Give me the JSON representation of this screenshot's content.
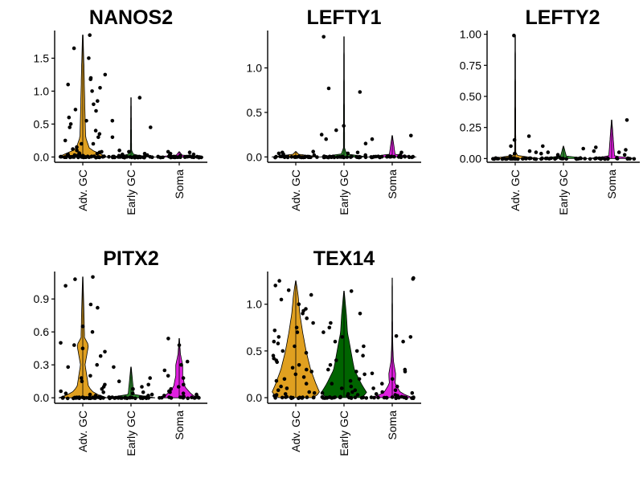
{
  "chart_data": [
    {
      "type": "violin",
      "title": "NANOS2",
      "categories": [
        "Adv. GC",
        "Early GC",
        "Soma"
      ],
      "colors": [
        "#E0A020",
        "#2E8B2E",
        "#E020E0"
      ],
      "ylim": [
        -0.08,
        1.92
      ],
      "yticks": [
        0,
        0.5,
        1,
        1.5
      ],
      "ytick_labels": [
        "0.0",
        "0.5",
        "1.0",
        "1.5"
      ],
      "groups": [
        {
          "max": 1.85,
          "shape": [
            [
              0,
              0.42
            ],
            [
              0.05,
              0.3
            ],
            [
              0.12,
              0.12
            ],
            [
              0.3,
              0.05
            ],
            [
              0.6,
              0.04
            ],
            [
              1.0,
              0.03
            ],
            [
              1.4,
              0.02
            ],
            [
              1.85,
              0.005
            ]
          ],
          "points": [
            1.85,
            1.65,
            1.5,
            1.25,
            1.2,
            1.18,
            1.1,
            1.05,
            1.0,
            0.85,
            0.8,
            0.72,
            0.7,
            0.6,
            0.55,
            0.5,
            0.45,
            0.4,
            0.35,
            0.3,
            0.25,
            0.2,
            0.2,
            0.15,
            0.12,
            0.1,
            0.08,
            0.07,
            0.06,
            0.05,
            0.05,
            0.04,
            0.03,
            0.03,
            0.02,
            0.02,
            0.01,
            0.01,
            0.01,
            0,
            0,
            0,
            0,
            0,
            0,
            0,
            0,
            0,
            0,
            0,
            0,
            0,
            0,
            0,
            0,
            0,
            0,
            0,
            0,
            0,
            0,
            0,
            0,
            0,
            0,
            0,
            0,
            0,
            0,
            0
          ]
        },
        {
          "max": 0.9,
          "shape": [
            [
              0,
              0.42
            ],
            [
              0.03,
              0.05
            ],
            [
              0.1,
              0.01
            ],
            [
              0.9,
              0.004
            ]
          ],
          "points": [
            0.9,
            0.55,
            0.45,
            0.3,
            0.1,
            0.08,
            0.05,
            0.04,
            0.03,
            0.02,
            0.01,
            0,
            0,
            0,
            0,
            0,
            0,
            0,
            0,
            0,
            0,
            0,
            0,
            0,
            0,
            0,
            0,
            0,
            0,
            0,
            0,
            0,
            0,
            0,
            0,
            0,
            0,
            0,
            0,
            0,
            0,
            0,
            0,
            0,
            0
          ]
        },
        {
          "max": 0.08,
          "shape": [
            [
              0,
              0.42
            ],
            [
              0.03,
              0.05
            ],
            [
              0.08,
              0.005
            ]
          ],
          "points": [
            0.08,
            0.07,
            0.05,
            0.04,
            0.03,
            0.02,
            0.01,
            0,
            0,
            0,
            0,
            0,
            0,
            0,
            0,
            0,
            0,
            0,
            0,
            0,
            0,
            0,
            0,
            0,
            0,
            0,
            0,
            0,
            0,
            0,
            0,
            0,
            0,
            0,
            0,
            0
          ]
        }
      ]
    },
    {
      "type": "violin",
      "title": "LEFTY1",
      "categories": [
        "Adv. GC",
        "Early GC",
        "Soma"
      ],
      "colors": [
        "#E0A020",
        "#2E8B2E",
        "#E020E0"
      ],
      "ylim": [
        -0.06,
        1.42
      ],
      "yticks": [
        0,
        0.5,
        1
      ],
      "ytick_labels": [
        "0.0",
        "0.5",
        "1.0"
      ],
      "groups": [
        {
          "max": 0.06,
          "shape": [
            [
              0,
              0.42
            ],
            [
              0.03,
              0.05
            ],
            [
              0.06,
              0.005
            ]
          ],
          "points": [
            0.06,
            0.05,
            0.04,
            0.03,
            0.02,
            0,
            0,
            0,
            0,
            0,
            0,
            0,
            0,
            0,
            0,
            0,
            0,
            0,
            0,
            0,
            0,
            0,
            0,
            0,
            0,
            0,
            0,
            0,
            0,
            0,
            0,
            0,
            0,
            0,
            0
          ]
        },
        {
          "max": 1.35,
          "shape": [
            [
              0,
              0.42
            ],
            [
              0.03,
              0.05
            ],
            [
              0.1,
              0.01
            ],
            [
              1.35,
              0.004
            ]
          ],
          "points": [
            1.35,
            0.77,
            0.73,
            0.35,
            0.3,
            0.25,
            0.2,
            0.15,
            0.05,
            0.04,
            0.02,
            0,
            0,
            0,
            0,
            0,
            0,
            0,
            0,
            0,
            0,
            0,
            0,
            0,
            0,
            0,
            0,
            0,
            0,
            0,
            0,
            0,
            0,
            0,
            0,
            0,
            0
          ]
        },
        {
          "max": 0.24,
          "shape": [
            [
              0,
              0.42
            ],
            [
              0.03,
              0.05
            ],
            [
              0.24,
              0.004
            ]
          ],
          "points": [
            0.24,
            0.2,
            0.05,
            0.02,
            0,
            0,
            0,
            0,
            0,
            0,
            0,
            0,
            0,
            0,
            0,
            0,
            0,
            0,
            0,
            0,
            0,
            0,
            0,
            0,
            0,
            0,
            0,
            0,
            0
          ]
        }
      ]
    },
    {
      "type": "violin",
      "title": "LEFTY2",
      "categories": [
        "Adv. GC",
        "Early GC",
        "Soma"
      ],
      "colors": [
        "#E0A020",
        "#2E8B2E",
        "#E020E0"
      ],
      "ylim": [
        -0.03,
        1.03
      ],
      "yticks": [
        0,
        0.25,
        0.5,
        0.75,
        1
      ],
      "ytick_labels": [
        "0.00",
        "0.25",
        "0.50",
        "0.75",
        "1.00"
      ],
      "groups": [
        {
          "max": 0.99,
          "shape": [
            [
              0,
              0.42
            ],
            [
              0.02,
              0.05
            ],
            [
              0.05,
              0.01
            ],
            [
              0.99,
              0.004
            ]
          ],
          "points": [
            0.99,
            0.18,
            0.15,
            0.1,
            0.06,
            0.05,
            0.04,
            0.02,
            0,
            0,
            0,
            0,
            0,
            0,
            0,
            0,
            0,
            0,
            0,
            0,
            0,
            0,
            0,
            0,
            0,
            0,
            0,
            0,
            0,
            0,
            0,
            0,
            0
          ]
        },
        {
          "max": 0.1,
          "shape": [
            [
              0,
              0.42
            ],
            [
              0.02,
              0.05
            ],
            [
              0.1,
              0.004
            ]
          ],
          "points": [
            0.1,
            0.08,
            0.05,
            0.04,
            0.03,
            0.02,
            0,
            0,
            0,
            0,
            0,
            0,
            0,
            0,
            0,
            0,
            0,
            0,
            0,
            0,
            0,
            0,
            0,
            0,
            0,
            0,
            0,
            0
          ]
        },
        {
          "max": 0.31,
          "shape": [
            [
              0,
              0.42
            ],
            [
              0.02,
              0.05
            ],
            [
              0.31,
              0.004
            ]
          ],
          "points": [
            0.31,
            0.09,
            0.07,
            0.06,
            0.05,
            0.03,
            0,
            0,
            0,
            0,
            0,
            0,
            0,
            0,
            0,
            0,
            0,
            0,
            0,
            0,
            0,
            0,
            0
          ]
        }
      ]
    },
    {
      "type": "violin",
      "title": "PITX2",
      "categories": [
        "Adv. GC",
        "Early GC",
        "Soma"
      ],
      "colors": [
        "#E0A020",
        "#2E8B2E",
        "#E020E0"
      ],
      "ylim": [
        -0.05,
        1.15
      ],
      "yticks": [
        0,
        0.3,
        0.6,
        0.9
      ],
      "ytick_labels": [
        "0.0",
        "0.3",
        "0.6",
        "0.9"
      ],
      "groups": [
        {
          "max": 1.1,
          "shape": [
            [
              0,
              0.42
            ],
            [
              0.04,
              0.2
            ],
            [
              0.1,
              0.1
            ],
            [
              0.3,
              0.04
            ],
            [
              0.48,
              0.1
            ],
            [
              0.55,
              0.03
            ],
            [
              0.8,
              0.02
            ],
            [
              1.1,
              0.004
            ]
          ],
          "points": [
            1.1,
            1.08,
            1.02,
            0.85,
            0.82,
            0.65,
            0.6,
            0.5,
            0.48,
            0.45,
            0.42,
            0.38,
            0.3,
            0.28,
            0.2,
            0.18,
            0.15,
            0.12,
            0.1,
            0.08,
            0.06,
            0.05,
            0.04,
            0.03,
            0.02,
            0.01,
            0,
            0,
            0,
            0,
            0,
            0,
            0,
            0,
            0,
            0,
            0,
            0,
            0,
            0,
            0,
            0,
            0,
            0,
            0,
            0,
            0,
            0,
            0,
            0,
            0,
            0,
            0,
            0
          ]
        },
        {
          "max": 0.28,
          "shape": [
            [
              0,
              0.42
            ],
            [
              0.03,
              0.05
            ],
            [
              0.28,
              0.004
            ]
          ],
          "points": [
            0.28,
            0.18,
            0.15,
            0.12,
            0.1,
            0.08,
            0.05,
            0.04,
            0.03,
            0.02,
            0,
            0,
            0,
            0,
            0,
            0,
            0,
            0,
            0,
            0,
            0,
            0,
            0,
            0,
            0,
            0,
            0,
            0,
            0,
            0,
            0,
            0,
            0,
            0,
            0,
            0
          ]
        },
        {
          "max": 0.54,
          "shape": [
            [
              0,
              0.3
            ],
            [
              0.04,
              0.2
            ],
            [
              0.1,
              0.1
            ],
            [
              0.2,
              0.06
            ],
            [
              0.3,
              0.06
            ],
            [
              0.4,
              0.02
            ],
            [
              0.54,
              0.004
            ]
          ],
          "points": [
            0.54,
            0.48,
            0.33,
            0.3,
            0.25,
            0.2,
            0.18,
            0.12,
            0.1,
            0.08,
            0.06,
            0.05,
            0.04,
            0.03,
            0.02,
            0.01,
            0,
            0,
            0,
            0,
            0,
            0,
            0,
            0,
            0,
            0,
            0,
            0,
            0,
            0
          ]
        }
      ]
    },
    {
      "type": "violin",
      "title": "TEX14",
      "categories": [
        "Adv. GC",
        "Early GC",
        "Soma"
      ],
      "colors": [
        "#E0A020",
        "#006400",
        "#E020E0"
      ],
      "ylim": [
        -0.06,
        1.35
      ],
      "yticks": [
        0,
        0.5,
        1
      ],
      "ytick_labels": [
        "0.0",
        "0.5",
        "1.0"
      ],
      "groups": [
        {
          "max": 1.25,
          "shape": [
            [
              0,
              0.3
            ],
            [
              0.05,
              0.42
            ],
            [
              0.15,
              0.35
            ],
            [
              0.3,
              0.26
            ],
            [
              0.5,
              0.18
            ],
            [
              0.7,
              0.12
            ],
            [
              0.9,
              0.07
            ],
            [
              1.1,
              0.04
            ],
            [
              1.25,
              0.004
            ]
          ],
          "points": [
            1.25,
            1.2,
            1.15,
            1.1,
            1.05,
            1.0,
            0.95,
            0.93,
            0.9,
            0.85,
            0.8,
            0.75,
            0.72,
            0.7,
            0.65,
            0.6,
            0.58,
            0.55,
            0.5,
            0.48,
            0.45,
            0.42,
            0.4,
            0.38,
            0.35,
            0.32,
            0.3,
            0.28,
            0.25,
            0.22,
            0.2,
            0.18,
            0.15,
            0.12,
            0.1,
            0.08,
            0.06,
            0.05,
            0.04,
            0.03,
            0.02,
            0.01,
            0,
            0,
            0,
            0,
            0,
            0,
            0,
            0,
            0,
            0,
            0,
            0,
            0,
            0
          ]
        },
        {
          "max": 1.14,
          "shape": [
            [
              0,
              0.3
            ],
            [
              0.05,
              0.4
            ],
            [
              0.15,
              0.3
            ],
            [
              0.3,
              0.18
            ],
            [
              0.5,
              0.12
            ],
            [
              0.7,
              0.06
            ],
            [
              0.9,
              0.04
            ],
            [
              1.14,
              0.004
            ]
          ],
          "points": [
            1.14,
            0.9,
            0.8,
            0.75,
            0.7,
            0.65,
            0.6,
            0.55,
            0.5,
            0.45,
            0.4,
            0.35,
            0.3,
            0.28,
            0.25,
            0.2,
            0.18,
            0.15,
            0.12,
            0.1,
            0.08,
            0.06,
            0.05,
            0.04,
            0.03,
            0.02,
            0.01,
            0,
            0,
            0,
            0,
            0,
            0,
            0,
            0,
            0,
            0,
            0,
            0,
            0,
            0,
            0,
            0,
            0,
            0,
            0,
            0
          ]
        },
        {
          "max": 1.28,
          "shape": [
            [
              0,
              0.35
            ],
            [
              0.05,
              0.15
            ],
            [
              0.15,
              0.05
            ],
            [
              0.25,
              0.06
            ],
            [
              0.4,
              0.02
            ],
            [
              0.6,
              0.008
            ],
            [
              1.28,
              0.003
            ]
          ],
          "points": [
            1.28,
            1.27,
            0.66,
            0.65,
            0.6,
            0.3,
            0.28,
            0.26,
            0.2,
            0.15,
            0.12,
            0.1,
            0.08,
            0.06,
            0.05,
            0.04,
            0.03,
            0.02,
            0.01,
            0,
            0,
            0,
            0,
            0,
            0,
            0,
            0,
            0,
            0,
            0,
            0,
            0,
            0,
            0,
            0,
            0
          ]
        }
      ]
    }
  ]
}
